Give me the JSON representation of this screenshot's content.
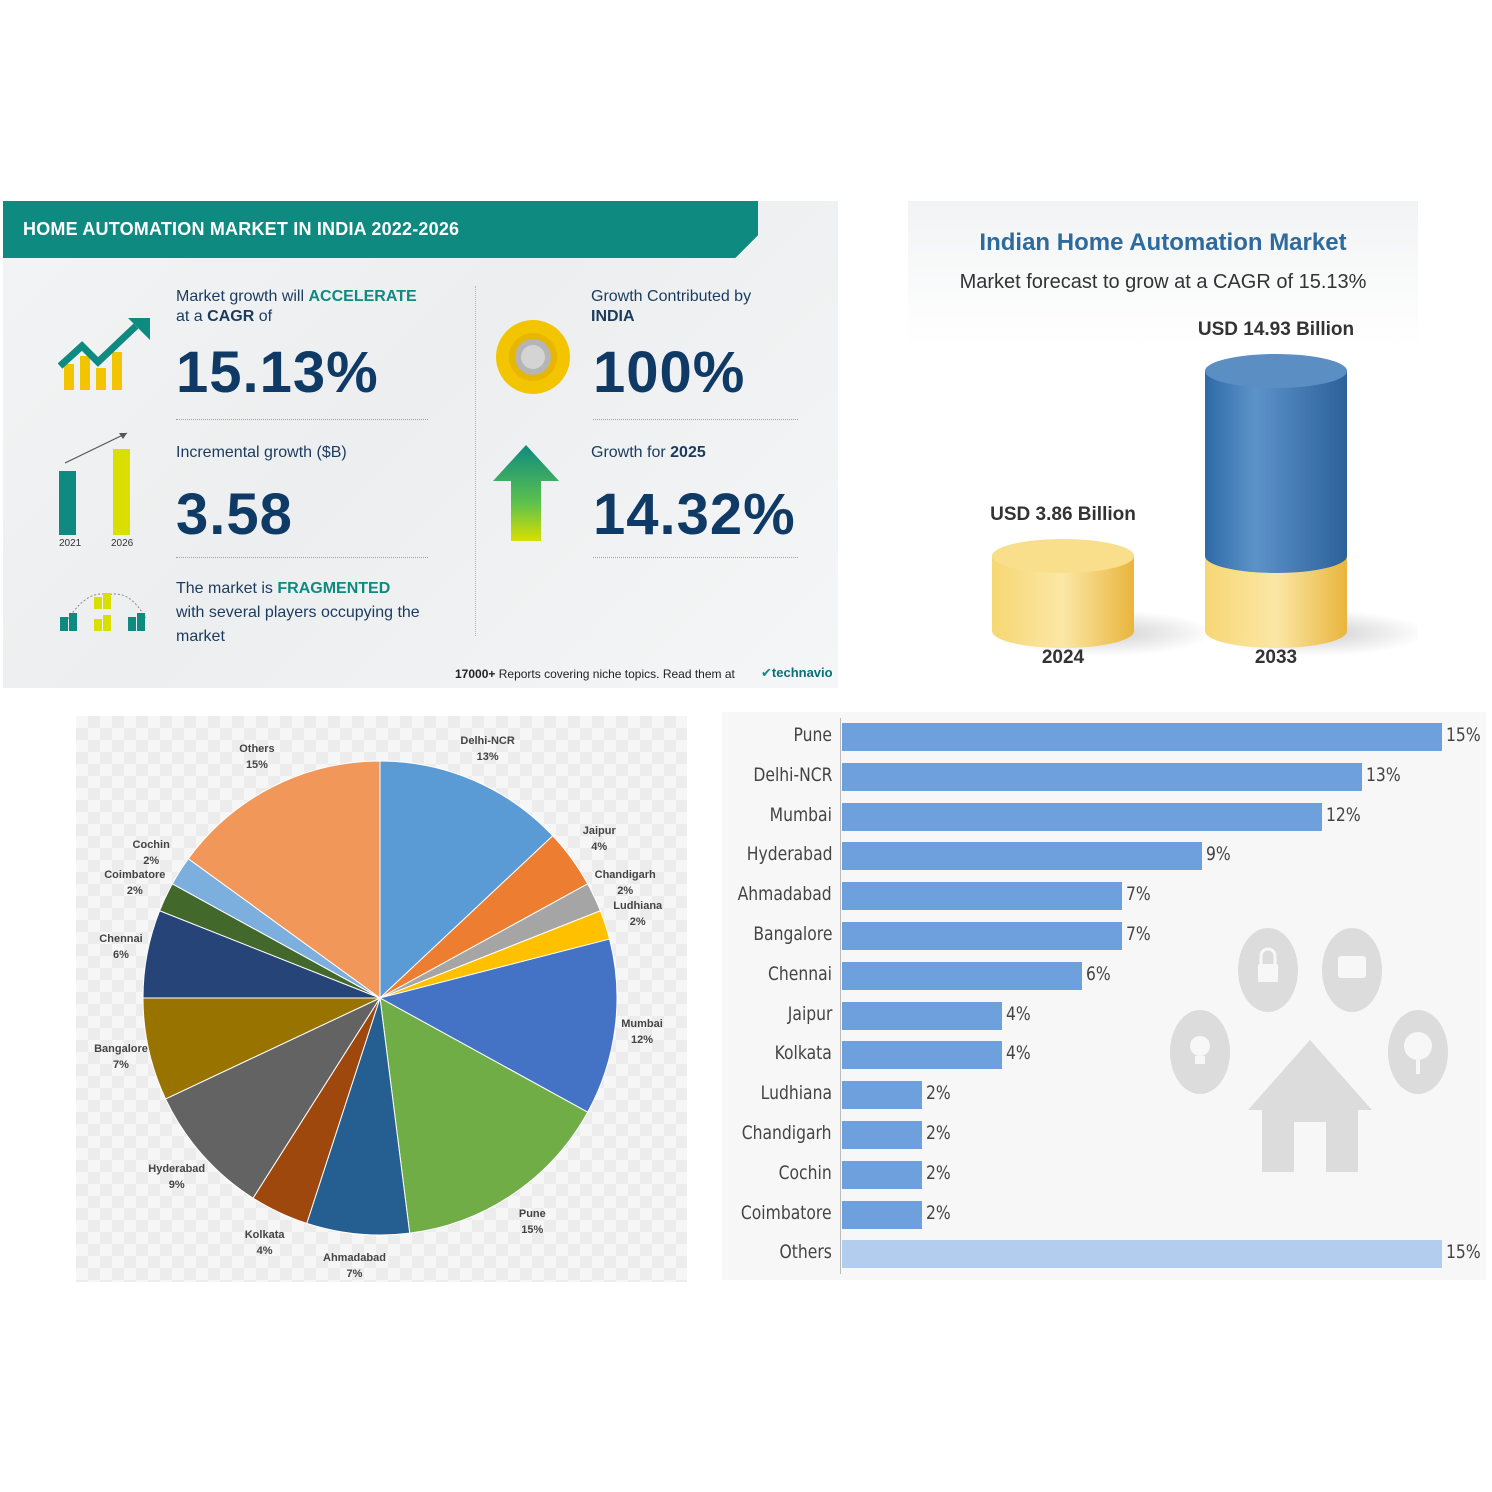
{
  "infographic": {
    "title": "HOME AUTOMATION MARKET IN INDIA 2022-2026",
    "cagr_text_1": "Market growth will",
    "cagr_text_1_bold": "ACCELERATE",
    "cagr_text_2": "at a",
    "cagr_text_2_bold": "CAGR",
    "cagr_text_2_end": "of",
    "cagr_value": "15.13%",
    "contrib_text": "Growth Contributed by",
    "contrib_bold": "INDIA",
    "contrib_value": "100%",
    "incremental_text": "Incremental growth ($B)",
    "incremental_value": "3.58",
    "bar_year_1": "2021",
    "bar_year_2": "2026",
    "growth_text": "Growth for",
    "growth_year": "2025",
    "growth_value": "14.32%",
    "market_text_1": "The market is",
    "market_bold": "FRAGMENTED",
    "market_text_2": "with several players occupying the",
    "market_text_3": "market",
    "footer_bold": "17000+",
    "footer_text": "Reports covering niche topics. Read them at",
    "logo": "technavio",
    "colors": {
      "teal": "#0e8a80",
      "navy": "#0f3a66",
      "green": "#76c043",
      "yellow": "#f2c500"
    }
  },
  "chart_data": [
    {
      "type": "bar",
      "title": "Indian Home Automation Market",
      "subtitle": "Market forecast to grow at a CAGR of 15.13%",
      "categories": [
        "2024",
        "2033"
      ],
      "values": [
        3.86,
        14.93
      ],
      "value_labels": [
        "USD 3.86 Billion",
        "USD 14.93 Billion"
      ],
      "colors": {
        "base": "#f2c94c",
        "top": "#3f7fbf"
      }
    },
    {
      "type": "pie",
      "slices": [
        {
          "label": "Delhi-NCR",
          "value": 13,
          "text": "13%",
          "color": "#5b9bd5"
        },
        {
          "label": "Jaipur",
          "value": 4,
          "text": "4%",
          "color": "#ed7d31"
        },
        {
          "label": "Chandigarh",
          "value": 2,
          "text": "2%",
          "color": "#a5a5a5"
        },
        {
          "label": "Ludhiana",
          "value": 2,
          "text": "2%",
          "color": "#ffc000"
        },
        {
          "label": "Mumbai",
          "value": 12,
          "text": "12%",
          "color": "#4472c4"
        },
        {
          "label": "Pune",
          "value": 15,
          "text": "15%",
          "color": "#70ad47"
        },
        {
          "label": "Ahmadabad",
          "value": 7,
          "text": "7%",
          "color": "#255e91"
        },
        {
          "label": "Kolkata",
          "value": 4,
          "text": "4%",
          "color": "#9e480e"
        },
        {
          "label": "Hyderabad",
          "value": 9,
          "text": "9%",
          "color": "#636363"
        },
        {
          "label": "Bangalore",
          "value": 7,
          "text": "7%",
          "color": "#997300"
        },
        {
          "label": "Chennai",
          "value": 6,
          "text": "6%",
          "color": "#264478"
        },
        {
          "label": "Coimbatore",
          "value": 2,
          "text": "2%",
          "color": "#43682b"
        },
        {
          "label": "Cochin",
          "value": 2,
          "text": "2%",
          "color": "#7cafdd"
        },
        {
          "label": "Others",
          "value": 15,
          "text": "15%",
          "color": "#f1975a"
        }
      ]
    },
    {
      "type": "bar",
      "orientation": "horizontal",
      "categories": [
        "Pune",
        "Delhi-NCR",
        "Mumbai",
        "Hyderabad",
        "Ahmadabad",
        "Bangalore",
        "Chennai",
        "Jaipur",
        "Kolkata",
        "Ludhiana",
        "Chandigarh",
        "Cochin",
        "Coimbatore",
        "Others"
      ],
      "values": [
        15,
        13,
        12,
        9,
        7,
        7,
        6,
        4,
        4,
        2,
        2,
        2,
        2,
        15
      ],
      "value_labels": [
        "15%",
        "13%",
        "12%",
        "9%",
        "7%",
        "7%",
        "6%",
        "4%",
        "4%",
        "2%",
        "2%",
        "2%",
        "2%",
        "15%"
      ],
      "colors": {
        "bar": "#6fa0de",
        "others": "#b3cdee"
      }
    }
  ]
}
